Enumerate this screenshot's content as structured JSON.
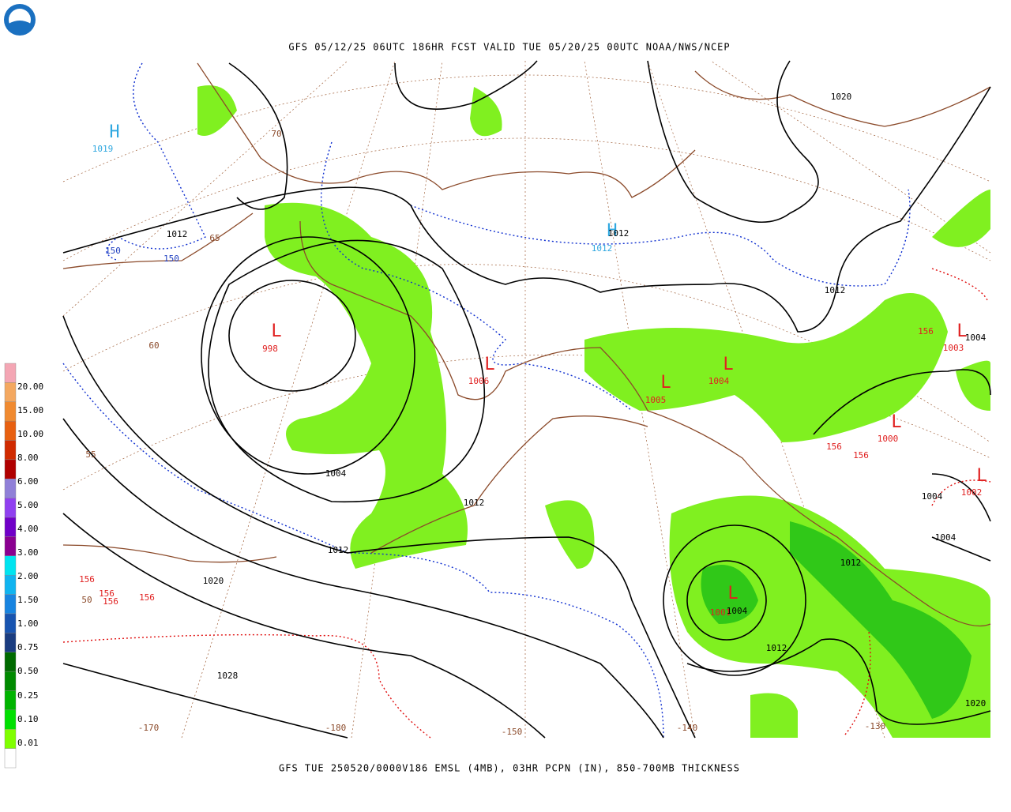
{
  "header": {
    "title": "GFS 05/12/25 06UTC 186HR FCST VALID TUE 05/20/25 00UTC NOAA/NWS/NCEP"
  },
  "footer": {
    "text": "GFS TUE 250520/0000V186 EMSL (4MB), 03HR PCPN (IN), 850-700MB THICKNESS"
  },
  "legend": {
    "labels": [
      "20.00",
      "15.00",
      "10.00",
      "8.00",
      "6.00",
      "5.00",
      "4.00",
      "3.00",
      "2.00",
      "1.50",
      "1.00",
      "0.75",
      "0.50",
      "0.25",
      "0.10",
      "0.01"
    ],
    "colors": [
      "#f4a6b4",
      "#f4a860",
      "#f08a30",
      "#e86010",
      "#d02a00",
      "#b00000",
      "#9080d8",
      "#9040f0",
      "#7000c8",
      "#8a0090",
      "#00e4f0",
      "#10b4f0",
      "#1884e0",
      "#1854b0",
      "#1a3c80",
      "#006a00",
      "#008a00",
      "#00b400",
      "#00e000",
      "#80ff00",
      "#ffffff"
    ]
  },
  "map": {
    "labels": [
      {
        "text": "H",
        "color": "#30a8e0"
      },
      {
        "text": "1019",
        "color": "#30a8e0"
      },
      {
        "text": "1012",
        "color": "#000000"
      },
      {
        "text": "150",
        "color": "#2040c0"
      },
      {
        "text": "150",
        "color": "#2040c0"
      },
      {
        "text": "70",
        "color": "#8b4a2a"
      },
      {
        "text": "65",
        "color": "#8b4a2a"
      },
      {
        "text": "60",
        "color": "#8b4a2a"
      },
      {
        "text": "55",
        "color": "#8b4a2a"
      },
      {
        "text": "50",
        "color": "#8b4a2a"
      },
      {
        "text": "L",
        "color": "#e02020"
      },
      {
        "text": "998",
        "color": "#e02020"
      },
      {
        "text": "1004",
        "color": "#000000"
      },
      {
        "text": "1012",
        "color": "#000000"
      },
      {
        "text": "1012",
        "color": "#000000"
      },
      {
        "text": "1020",
        "color": "#000000"
      },
      {
        "text": "1028",
        "color": "#000000"
      },
      {
        "text": "156",
        "color": "#e02020"
      },
      {
        "text": "156",
        "color": "#e02020"
      },
      {
        "text": "156",
        "color": "#e02020"
      },
      {
        "text": "156",
        "color": "#e02020"
      },
      {
        "text": "L",
        "color": "#e02020"
      },
      {
        "text": "1006",
        "color": "#e02020"
      },
      {
        "text": "H",
        "color": "#30a8e0"
      },
      {
        "text": "1012",
        "color": "#000000"
      },
      {
        "text": "1012",
        "color": "#30a8e0"
      },
      {
        "text": "1020",
        "color": "#000000"
      },
      {
        "text": "1012",
        "color": "#000000"
      },
      {
        "text": "L",
        "color": "#e02020"
      },
      {
        "text": "1004",
        "color": "#e02020"
      },
      {
        "text": "L",
        "color": "#e02020"
      },
      {
        "text": "1005",
        "color": "#e02020"
      },
      {
        "text": "156",
        "color": "#e02020"
      },
      {
        "text": "L",
        "color": "#e02020"
      },
      {
        "text": "1003",
        "color": "#e02020"
      },
      {
        "text": "1004",
        "color": "#000000"
      },
      {
        "text": "L",
        "color": "#e02020"
      },
      {
        "text": "1000",
        "color": "#e02020"
      },
      {
        "text": "156",
        "color": "#e02020"
      },
      {
        "text": "156",
        "color": "#e02020"
      },
      {
        "text": "L",
        "color": "#e02020"
      },
      {
        "text": "1002",
        "color": "#e02020"
      },
      {
        "text": "1004",
        "color": "#000000"
      },
      {
        "text": "1004",
        "color": "#000000"
      },
      {
        "text": "1012",
        "color": "#000000"
      },
      {
        "text": "L",
        "color": "#e02020"
      },
      {
        "text": "1001",
        "color": "#e02020"
      },
      {
        "text": "1004",
        "color": "#000000"
      },
      {
        "text": "1012",
        "color": "#000000"
      },
      {
        "text": "1020",
        "color": "#000000"
      },
      {
        "text": "-170",
        "color": "#8b4a2a"
      },
      {
        "text": "-180",
        "color": "#8b4a2a"
      },
      {
        "text": "-150",
        "color": "#8b4a2a"
      },
      {
        "text": "-140",
        "color": "#8b4a2a"
      },
      {
        "text": "-130",
        "color": "#8b4a2a"
      }
    ]
  }
}
